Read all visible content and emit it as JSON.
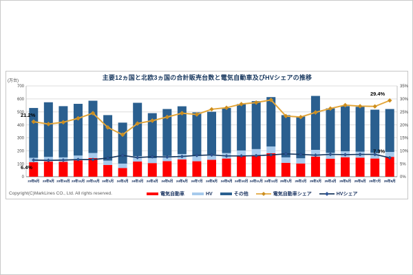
{
  "page": {
    "copyright": "Copyright(C)MarkLines CO., Ltd. All rights reserved."
  },
  "chart_data": {
    "type": "combo-stacked-bar-and-line",
    "title": "主要12ヵ国と北欧3ヵ国の合計販売台数と電気自動車及びHVシェアの推移",
    "legend_position": "bottom",
    "grid": "horizontal",
    "left_axis": {
      "label": "(万台)",
      "min": 0,
      "max": 700,
      "step": 100,
      "tick_values": [
        0,
        100,
        200,
        300,
        400,
        500,
        600,
        700
      ],
      "tick_labels": [
        "0",
        "100",
        "200",
        "300",
        "400",
        "500",
        "600",
        "700"
      ]
    },
    "right_axis": {
      "label": "",
      "min": 0,
      "max": 35,
      "step": 5,
      "tick_values": [
        0,
        5,
        10,
        15,
        20,
        25,
        30,
        35
      ],
      "tick_labels": [
        "0%",
        "5%",
        "10%",
        "15%",
        "20%",
        "25%",
        "30%",
        "35%"
      ]
    },
    "categories": [
      "23年8月",
      "23年9月",
      "23年10月",
      "23年11月",
      "23年12月",
      "24年1月",
      "24年2月",
      "24年3月",
      "24年4月",
      "24年5月",
      "24年6月",
      "24年7月",
      "24年8月",
      "24年9月",
      "24年10月",
      "24年11月",
      "24年12月",
      "25年1月",
      "25年2月",
      "25年3月",
      "25年4月",
      "25年5月",
      "25年6月",
      "25年7月",
      "25年8月"
    ],
    "series": [
      {
        "name": "電気自動車",
        "type": "bar",
        "stack": true,
        "color": "#FF0000",
        "values": [
          112,
          117,
          114,
          126,
          144,
          90,
          67,
          117,
          105,
          120,
          133,
          119,
          130,
          140,
          157,
          166,
          181,
          107,
          102,
          155,
          139,
          150,
          147,
          140,
          153
        ]
      },
      {
        "name": "HV",
        "type": "bar",
        "stack": true,
        "color": "#A6CAEC",
        "values": [
          34,
          36,
          35,
          37,
          39,
          34,
          34,
          42,
          38,
          40,
          42,
          41,
          42,
          42,
          45,
          47,
          52,
          42,
          40,
          52,
          45,
          46,
          46,
          45,
          38
        ]
      },
      {
        "name": "その他",
        "type": "bar",
        "stack": true,
        "color": "#2A5F8F",
        "values": [
          384,
          421,
          395,
          399,
          403,
          351,
          316,
          411,
          347,
          362,
          368,
          336,
          329,
          348,
          358,
          370,
          381,
          326,
          322,
          416,
          343,
          348,
          346,
          332,
          331
        ]
      },
      {
        "name": "電気自動車シェア",
        "type": "line",
        "axis": "right",
        "color": "#E3A63B",
        "marker_color": "#CB8D1E",
        "values": [
          21.2,
          20.3,
          21.0,
          22.5,
          24.5,
          19.0,
          16.2,
          20.5,
          21.6,
          23.0,
          24.5,
          24.0,
          26.0,
          26.6,
          28.0,
          28.6,
          29.6,
          23.4,
          23.0,
          24.8,
          26.3,
          27.6,
          27.2,
          27.1,
          29.4
        ]
      },
      {
        "name": "HVシェア",
        "type": "line",
        "axis": "right",
        "color": "#17375E",
        "marker_color": "#2E5597",
        "values": [
          6.4,
          6.3,
          6.4,
          6.6,
          6.6,
          7.2,
          8.2,
          7.4,
          7.7,
          7.6,
          7.8,
          8.2,
          8.4,
          8.0,
          8.0,
          8.1,
          8.4,
          8.8,
          8.6,
          8.3,
          8.6,
          8.5,
          8.6,
          8.6,
          7.3
        ]
      }
    ],
    "annotations": [
      {
        "series": "電気自動車シェア",
        "index": 0,
        "text": "21.2%",
        "side": "above",
        "anchor": "start"
      },
      {
        "series": "電気自動車シェア",
        "index": 24,
        "text": "29.4%",
        "side": "above",
        "anchor": "end"
      },
      {
        "series": "HVシェア",
        "index": 0,
        "text": "6.4%",
        "side": "below",
        "anchor": "start"
      },
      {
        "series": "HVシェア",
        "index": 24,
        "text": "7.3%",
        "side": "above",
        "anchor": "end"
      }
    ]
  }
}
